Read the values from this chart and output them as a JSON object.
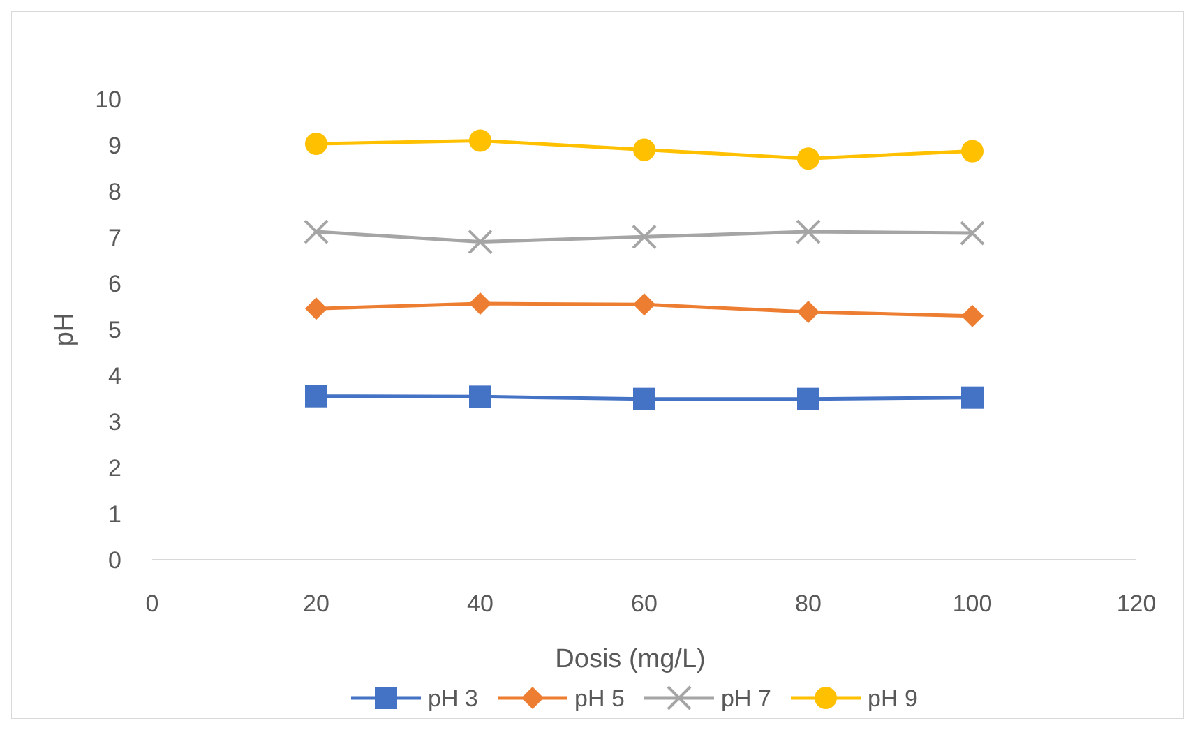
{
  "chart_data": {
    "type": "line",
    "xlabel": "Dosis (mg/L)",
    "ylabel": "pH",
    "x": [
      20,
      40,
      60,
      80,
      100
    ],
    "xlim": [
      0,
      120
    ],
    "xticks": [
      0,
      20,
      40,
      60,
      80,
      100,
      120
    ],
    "ylim": [
      0,
      10
    ],
    "yticks": [
      0,
      1,
      2,
      3,
      4,
      5,
      6,
      7,
      8,
      9,
      10
    ],
    "grid": false,
    "legend": "bottom",
    "line_style": "solid",
    "series": [
      {
        "name": "pH 3",
        "color": "#4472c4",
        "marker": "square",
        "values": [
          3.55,
          3.54,
          3.49,
          3.49,
          3.52
        ]
      },
      {
        "name": "pH 5",
        "color": "#ed7d31",
        "marker": "diamond",
        "values": [
          5.45,
          5.56,
          5.54,
          5.38,
          5.29
        ]
      },
      {
        "name": "pH 7",
        "color": "#a5a5a5",
        "marker": "cross",
        "values": [
          7.12,
          6.9,
          7.01,
          7.12,
          7.09
        ]
      },
      {
        "name": "pH 9",
        "color": "#ffc000",
        "marker": "circle",
        "values": [
          9.03,
          9.1,
          8.9,
          8.71,
          8.87
        ]
      }
    ]
  }
}
